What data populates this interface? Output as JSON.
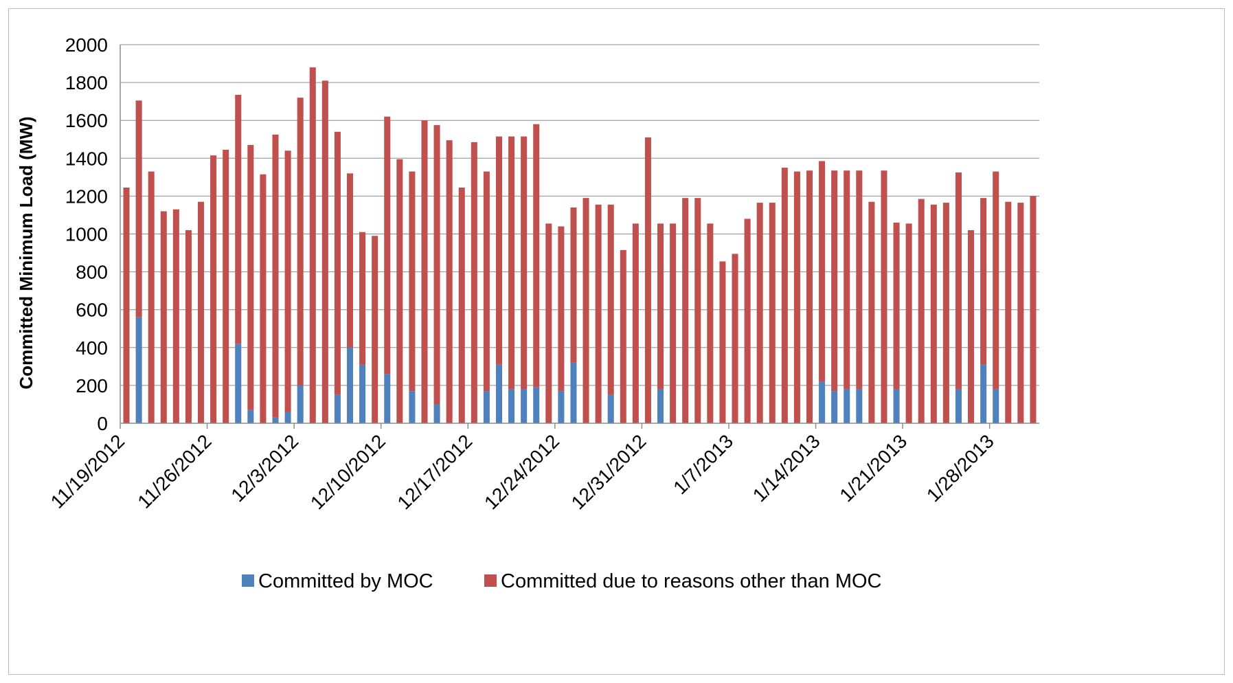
{
  "chart_data": {
    "type": "bar",
    "stacked": true,
    "title": "",
    "xlabel": "",
    "ylabel": "Committed Minimum Load (MW)",
    "ylim": [
      0,
      2000
    ],
    "yticks": [
      0,
      200,
      400,
      600,
      800,
      1000,
      1200,
      1400,
      1600,
      1800,
      2000
    ],
    "grid": "horizontal",
    "legend_position": "bottom",
    "x_tick_labels": [
      "11/19/2012",
      "11/26/2012",
      "12/3/2012",
      "12/10/2012",
      "12/17/2012",
      "12/24/2012",
      "12/31/2012",
      "1/7/2013",
      "1/14/2013",
      "1/21/2013",
      "1/28/2013"
    ],
    "x_start": "11/19/2012",
    "series": [
      {
        "name": "Committed by MOC",
        "color": "#4f81bd",
        "values": [
          0,
          560,
          0,
          0,
          0,
          0,
          0,
          0,
          0,
          420,
          70,
          0,
          30,
          60,
          200,
          0,
          0,
          150,
          400,
          310,
          0,
          260,
          0,
          170,
          0,
          100,
          0,
          0,
          0,
          170,
          310,
          180,
          180,
          190,
          0,
          170,
          320,
          0,
          0,
          150,
          0,
          0,
          0,
          180,
          0,
          0,
          0,
          0,
          0,
          0,
          0,
          0,
          0,
          0,
          0,
          0,
          220,
          170,
          180,
          180,
          0,
          0,
          180,
          0,
          0,
          0,
          0,
          180,
          0,
          310,
          180,
          0,
          0,
          0
        ]
      },
      {
        "name": "Committed due to reasons other than MOC",
        "color": "#c0504d",
        "values": [
          1245,
          1145,
          1330,
          1120,
          1130,
          1020,
          1170,
          1415,
          1445,
          1315,
          1400,
          1315,
          1495,
          1380,
          1520,
          1880,
          1810,
          1390,
          920,
          700,
          990,
          1360,
          1395,
          1160,
          1600,
          1475,
          1495,
          1245,
          1485,
          1160,
          1205,
          1335,
          1335,
          1390,
          1055,
          870,
          820,
          1190,
          1155,
          1005,
          915,
          1055,
          1510,
          875,
          1055,
          1190,
          1190,
          1055,
          855,
          895,
          1080,
          1165,
          1165,
          1350,
          1330,
          1335,
          1165,
          1165,
          1155,
          1155,
          1170,
          1335,
          880,
          1055,
          1185,
          1155,
          1165,
          1145,
          1020,
          880,
          1150,
          1170,
          1165,
          1200
        ]
      }
    ]
  },
  "legend": {
    "items": [
      {
        "label": "Committed by MOC",
        "color": "#4f81bd"
      },
      {
        "label": "Committed due to reasons other than MOC",
        "color": "#c0504d"
      }
    ]
  }
}
